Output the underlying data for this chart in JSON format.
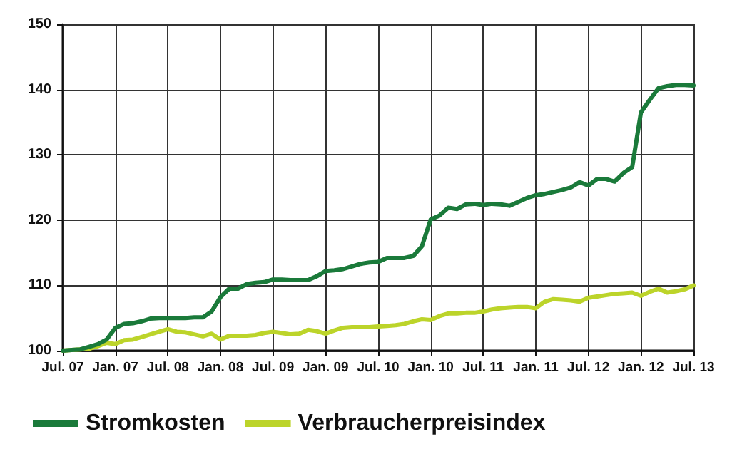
{
  "chart_data": {
    "type": "line",
    "ylim": [
      100,
      150
    ],
    "categories": [
      "Jul. 07",
      null,
      null,
      null,
      null,
      null,
      "Jan. 07",
      null,
      null,
      null,
      null,
      null,
      "Jul. 08",
      null,
      null,
      null,
      null,
      null,
      "Jan. 08",
      null,
      null,
      null,
      null,
      null,
      "Jul. 09",
      null,
      null,
      null,
      null,
      null,
      "Jan. 09",
      null,
      null,
      null,
      null,
      null,
      "Jul. 10",
      null,
      null,
      null,
      null,
      null,
      "Jan. 10",
      null,
      null,
      null,
      null,
      null,
      "Jul. 11",
      null,
      null,
      null,
      null,
      null,
      "Jan. 11",
      null,
      null,
      null,
      null,
      null,
      "Jul. 12",
      null,
      null,
      null,
      null,
      null,
      "Jan. 12",
      null,
      null,
      null,
      null,
      null,
      "Jul. 13"
    ],
    "yticks": [
      100,
      110,
      120,
      130,
      140,
      150
    ],
    "grid": true,
    "legend": "bottom",
    "marker": "none",
    "line_style": "solid",
    "series": [
      {
        "name": "Stromkosten",
        "color": "#1a7a3a",
        "values": [
          100,
          100.1,
          100.2,
          100.6,
          101,
          101.7,
          103.5,
          104.1,
          104.2,
          104.5,
          104.9,
          105,
          105,
          105,
          105,
          105.1,
          105.1,
          106,
          108.2,
          109.5,
          109.5,
          110.2,
          110.4,
          110.5,
          110.9,
          110.9,
          110.8,
          110.8,
          110.8,
          111.4,
          112.2,
          112.3,
          112.5,
          112.9,
          113.3,
          113.5,
          113.6,
          114.2,
          114.2,
          114.2,
          114.5,
          116,
          120.1,
          120.7,
          121.9,
          121.7,
          122.4,
          122.5,
          122.3,
          122.5,
          122.4,
          122.2,
          122.8,
          123.4,
          123.8,
          124,
          124.3,
          124.6,
          125,
          125.8,
          125.3,
          126.3,
          126.3,
          125.9,
          127.2,
          128.1,
          136.5,
          138.4,
          140.2,
          140.5,
          140.7,
          140.7,
          140.6
        ]
      },
      {
        "name": "Verbraucherpreisindex",
        "color": "#bcd42a",
        "values": [
          100,
          100.1,
          100.2,
          100.3,
          100.7,
          101.2,
          101,
          101.6,
          101.7,
          102.1,
          102.5,
          102.9,
          103.3,
          102.9,
          102.8,
          102.5,
          102.2,
          102.6,
          101.7,
          102.3,
          102.3,
          102.3,
          102.4,
          102.7,
          102.9,
          102.7,
          102.5,
          102.6,
          103.2,
          103,
          102.6,
          103.1,
          103.5,
          103.6,
          103.6,
          103.6,
          103.7,
          103.8,
          103.9,
          104.1,
          104.5,
          104.8,
          104.7,
          105.3,
          105.7,
          105.7,
          105.8,
          105.8,
          106,
          106.3,
          106.5,
          106.6,
          106.7,
          106.7,
          106.5,
          107.5,
          107.9,
          107.8,
          107.7,
          107.5,
          108.1,
          108.3,
          108.5,
          108.7,
          108.8,
          108.9,
          108.4,
          109,
          109.5,
          108.9,
          109.1,
          109.4,
          110
        ]
      }
    ]
  }
}
